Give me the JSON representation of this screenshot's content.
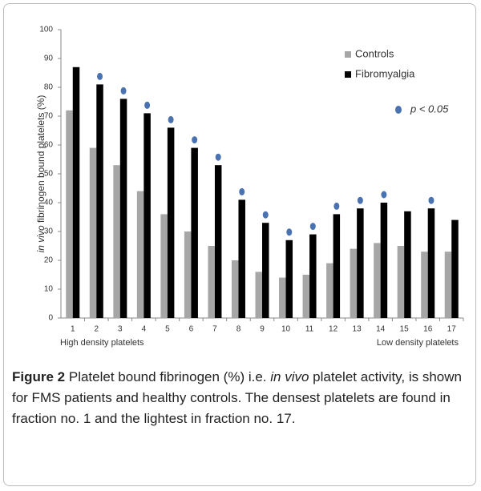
{
  "chart_data": {
    "type": "bar",
    "y_label_italic": "in vivo",
    "y_label": "fibrinogen bound platelets (%)",
    "categories": [
      "1",
      "2",
      "3",
      "4",
      "5",
      "6",
      "7",
      "8",
      "9",
      "10",
      "11",
      "12",
      "13",
      "14",
      "15",
      "16",
      "17"
    ],
    "series": [
      {
        "name": "Controls",
        "color": "#a6a6a6",
        "values": [
          72,
          59,
          53,
          44,
          36,
          30,
          25,
          20,
          16,
          14,
          15,
          19,
          24,
          26,
          25,
          23,
          23
        ]
      },
      {
        "name": "Fibromyalgia",
        "color": "#000000",
        "values": [
          87,
          81,
          76,
          71,
          66,
          59,
          53,
          41,
          33,
          27,
          29,
          36,
          38,
          40,
          37,
          38,
          34
        ]
      }
    ],
    "significance": {
      "name": "p < 0.05",
      "color": "#4a72b0",
      "flags": [
        false,
        true,
        true,
        true,
        true,
        true,
        true,
        true,
        true,
        true,
        true,
        true,
        true,
        true,
        false,
        true,
        false
      ]
    },
    "ylim": [
      0,
      100
    ],
    "yticks": [
      0,
      10,
      20,
      30,
      40,
      50,
      60,
      70,
      80,
      90,
      100
    ],
    "left_annotation": "High density platelets",
    "right_annotation": "Low density platelets"
  },
  "caption": {
    "label": "Figure 2",
    "text_before": "Platelet bound fibrinogen (%) i.e.",
    "italic": "in vivo",
    "text_after": "platelet activity, is shown for FMS patients and healthy controls. The densest platelets are found in fraction no. 1 and the lightest in fraction no. 17."
  }
}
